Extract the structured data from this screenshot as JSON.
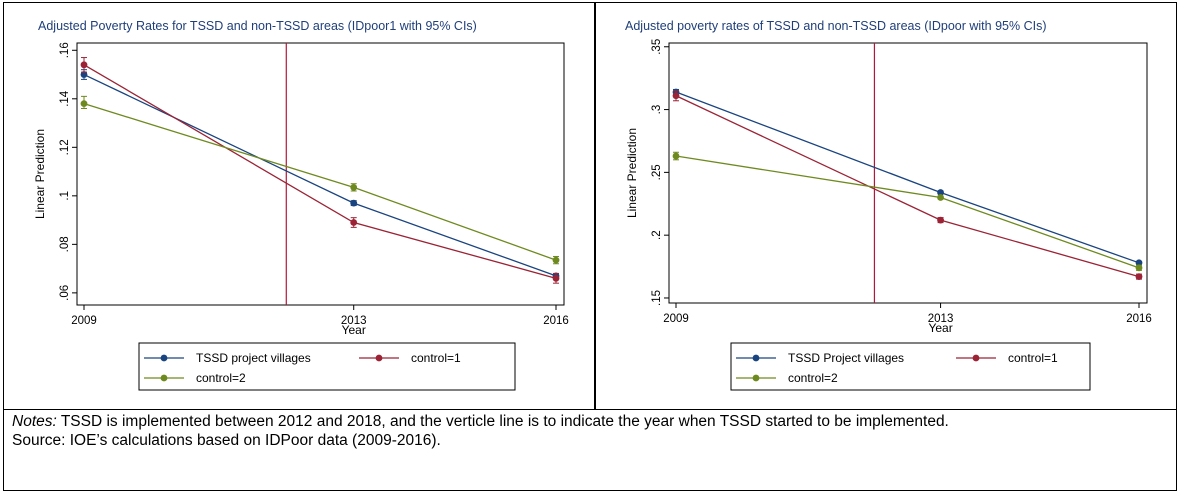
{
  "chart_data": [
    {
      "type": "line",
      "title": "Adjusted Poverty Rates for TSSD and non-TSSD areas (IDpoor1 with 95% CIs)",
      "xlabel": "Year",
      "ylabel": "Linear Prediction",
      "x": [
        2009,
        2013,
        2016
      ],
      "xlim": [
        2009,
        2016
      ],
      "ylim": [
        0.055,
        0.163
      ],
      "yticks": [
        0.06,
        0.08,
        0.1,
        0.12,
        0.14,
        0.16
      ],
      "ytick_labels": [
        ".06",
        ".08",
        ".1",
        ".12",
        ".14",
        ".16"
      ],
      "vline": 2012,
      "series": [
        {
          "name": "TSSD project villages",
          "color": "#1a4480",
          "values": [
            0.15,
            0.097,
            0.067
          ],
          "ci": [
            [
              0.148,
              0.152
            ],
            [
              0.096,
              0.098
            ],
            [
              0.066,
              0.068
            ]
          ]
        },
        {
          "name": "control=1",
          "color": "#9b2335",
          "values": [
            0.154,
            0.089,
            0.066
          ],
          "ci": [
            [
              0.151,
              0.157
            ],
            [
              0.087,
              0.091
            ],
            [
              0.064,
              0.068
            ]
          ]
        },
        {
          "name": "control=2",
          "color": "#6e8a1f",
          "values": [
            0.138,
            0.1035,
            0.0735
          ],
          "ci": [
            [
              0.136,
              0.141
            ],
            [
              0.102,
              0.105
            ],
            [
              0.072,
              0.075
            ]
          ]
        }
      ],
      "legend": "bottom"
    },
    {
      "type": "line",
      "title": "Adjusted poverty rates of TSSD and non-TSSD areas (IDpoor with 95% CIs)",
      "xlabel": "Year",
      "ylabel": "Linear Prediction",
      "x": [
        2009,
        2013,
        2016
      ],
      "xlim": [
        2009,
        2016
      ],
      "ylim": [
        0.146,
        0.353
      ],
      "yticks": [
        0.15,
        0.2,
        0.25,
        0.3,
        0.35
      ],
      "ytick_labels": [
        ".15",
        ".2",
        ".25",
        ".3",
        ".35"
      ],
      "vline": 2012,
      "series": [
        {
          "name": "TSSD Project villages",
          "color": "#1a4480",
          "values": [
            0.314,
            0.234,
            0.178
          ],
          "ci": [
            [
              0.312,
              0.316
            ],
            [
              0.233,
              0.235
            ],
            [
              0.177,
              0.179
            ]
          ]
        },
        {
          "name": "control=1",
          "color": "#9b2335",
          "values": [
            0.311,
            0.212,
            0.167
          ],
          "ci": [
            [
              0.307,
              0.315
            ],
            [
              0.21,
              0.214
            ],
            [
              0.165,
              0.169
            ]
          ]
        },
        {
          "name": "control=2",
          "color": "#6e8a1f",
          "values": [
            0.263,
            0.23,
            0.174
          ],
          "ci": [
            [
              0.26,
              0.266
            ],
            [
              0.229,
              0.231
            ],
            [
              0.172,
              0.176
            ]
          ]
        }
      ],
      "legend": "bottom"
    }
  ],
  "vline_color": "#b3163a",
  "notes": {
    "italic": "Notes:",
    "text": " TSSD is implemented between 2012 and 2018, and the verticle line is to indicate the year when TSSD started to be implemented.",
    "source": "Source: IOE’s calculations based on IDPoor data (2009-2016)."
  }
}
